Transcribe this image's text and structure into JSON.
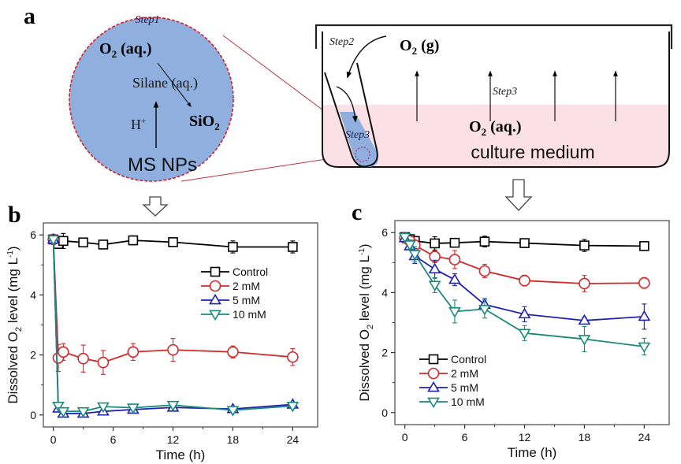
{
  "panel_a": {
    "label": "a",
    "zoom_circle": {
      "step_label": "Step1",
      "o2_label": "O",
      "o2_sub": "2",
      "o2_suffix": " (aq.)",
      "silane_label": "Silane (aq.)",
      "h_label": "H",
      "h_sup": "+",
      "sio2_label": "SiO",
      "sio2_sub": "2",
      "np_label": "MS NPs"
    },
    "vessel": {
      "step2_label": "Step2",
      "o2g_label": "O",
      "o2g_sub": "2",
      "o2g_suffix": " (g)",
      "step3_label": "Step3",
      "step3_tube_label": "Step3",
      "o2aq_label": "O",
      "o2aq_sub": "2",
      "o2aq_suffix": " (aq.)",
      "medium_label": "culture medium"
    },
    "colors": {
      "circle_fill": "#8fb0de",
      "medium_fill": "#fbe1e5",
      "dashed_red": "#d0202a"
    }
  },
  "chart_data": [
    {
      "panel": "b",
      "type": "line",
      "title": "",
      "xlabel": "Time (h)",
      "ylabel_prefix": "Dissolved O",
      "ylabel_sub": "2",
      "ylabel_suffix": " level (mg L",
      "ylabel_sup": "-1",
      "ylabel_end": ")",
      "xlim": [
        -1,
        26.5
      ],
      "ylim": [
        -0.4,
        6.4
      ],
      "xticks": [
        0,
        6,
        12,
        18,
        24
      ],
      "yticks": [
        0,
        2,
        4,
        6
      ],
      "legend_position": "upper-right",
      "series": [
        {
          "name": "Control",
          "color": "#000000",
          "marker": "square",
          "x": [
            0,
            0.5,
            1,
            3,
            5,
            8,
            12,
            18,
            24
          ],
          "y": [
            5.85,
            5.7,
            5.8,
            5.75,
            5.68,
            5.82,
            5.76,
            5.6,
            5.6
          ],
          "err": [
            0.15,
            0.15,
            0.25,
            0.05,
            0.05,
            0.15,
            0.05,
            0.2,
            0.2
          ]
        },
        {
          "name": "2 mM",
          "color": "#d62728",
          "marker": "circle",
          "x": [
            0,
            0.5,
            1,
            3,
            5,
            8,
            12,
            18,
            24
          ],
          "y": [
            5.85,
            1.9,
            2.1,
            1.88,
            1.75,
            2.1,
            2.17,
            2.1,
            1.93
          ],
          "err": [
            0.1,
            0.45,
            0.28,
            0.45,
            0.4,
            0.28,
            0.38,
            0.2,
            0.28
          ]
        },
        {
          "name": "5 mM",
          "color": "#1f1fb4",
          "marker": "triangle-up",
          "x": [
            0,
            0.5,
            1,
            3,
            5,
            8,
            12,
            18,
            24
          ],
          "y": [
            5.85,
            0.22,
            0.05,
            0.05,
            0.12,
            0.18,
            0.25,
            0.2,
            0.35
          ],
          "err": [
            0.1,
            0.05,
            0.05,
            0.05,
            0.05,
            0.05,
            0.05,
            0.05,
            0.05
          ]
        },
        {
          "name": "10 mM",
          "color": "#1b8a7a",
          "marker": "triangle-down",
          "x": [
            0,
            0.5,
            1,
            3,
            5,
            8,
            12,
            18,
            24
          ],
          "y": [
            5.85,
            0.3,
            0.12,
            0.12,
            0.28,
            0.24,
            0.33,
            0.16,
            0.3
          ],
          "err": [
            0.1,
            0.05,
            0.05,
            0.05,
            0.05,
            0.05,
            0.05,
            0.05,
            0.05
          ]
        }
      ]
    },
    {
      "panel": "c",
      "type": "line",
      "title": "",
      "xlabel": "Time (h)",
      "ylabel_prefix": "Dissolved O",
      "ylabel_sub": "2",
      "ylabel_suffix": " level (mg L",
      "ylabel_sup": "-1",
      "ylabel_end": ")",
      "xlim": [
        -1,
        26.5
      ],
      "ylim": [
        -0.4,
        6.4
      ],
      "xticks": [
        0,
        6,
        12,
        18,
        24
      ],
      "yticks": [
        0,
        2,
        4,
        6
      ],
      "legend_position": "lower-left",
      "series": [
        {
          "name": "Control",
          "color": "#000000",
          "marker": "square",
          "x": [
            0,
            0.5,
            1,
            3,
            5,
            8,
            12,
            18,
            24
          ],
          "y": [
            5.85,
            5.78,
            5.72,
            5.64,
            5.66,
            5.7,
            5.65,
            5.57,
            5.55
          ],
          "err": [
            0.05,
            0.1,
            0.1,
            0.22,
            0.1,
            0.18,
            0.05,
            0.2,
            0.1
          ]
        },
        {
          "name": "2 mM",
          "color": "#d62728",
          "marker": "circle",
          "x": [
            0,
            0.5,
            1,
            3,
            5,
            8,
            12,
            18,
            24
          ],
          "y": [
            5.82,
            5.72,
            5.58,
            5.2,
            5.1,
            4.72,
            4.4,
            4.3,
            4.32
          ],
          "err": [
            0.05,
            0.1,
            0.1,
            0.2,
            0.3,
            0.22,
            0.18,
            0.27,
            0.18
          ]
        },
        {
          "name": "5 mM",
          "color": "#1f1fb4",
          "marker": "triangle-up",
          "x": [
            0,
            0.5,
            1,
            3,
            5,
            8,
            12,
            18,
            24
          ],
          "y": [
            5.82,
            5.55,
            5.22,
            4.78,
            4.43,
            3.6,
            3.28,
            3.07,
            3.2
          ],
          "err": [
            0.05,
            0.1,
            0.25,
            0.3,
            0.2,
            0.2,
            0.25,
            0.1,
            0.42
          ]
        },
        {
          "name": "10 mM",
          "color": "#1b8a7a",
          "marker": "triangle-down",
          "x": [
            0,
            0.5,
            1,
            3,
            5,
            8,
            12,
            18,
            24
          ],
          "y": [
            5.85,
            5.6,
            5.28,
            4.25,
            3.37,
            3.45,
            2.65,
            2.45,
            2.2
          ],
          "err": [
            0.05,
            0.15,
            0.25,
            0.25,
            0.38,
            0.3,
            0.25,
            0.42,
            0.28
          ]
        }
      ]
    }
  ]
}
